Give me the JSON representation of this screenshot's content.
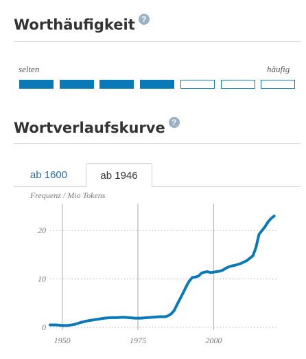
{
  "word_frequency": {
    "title": "Worthäufigkeit",
    "help_icon": "question-circle-icon",
    "label_low": "selten",
    "label_high": "häufig",
    "level": 4,
    "max_level": 7
  },
  "word_curve": {
    "title": "Wortverlaufskurve",
    "help_icon": "question-circle-icon",
    "tabs": [
      {
        "label": "ab 1600",
        "active": false
      },
      {
        "label": "ab 1946",
        "active": true
      }
    ]
  },
  "colors": {
    "accent": "#0a79b8",
    "link": "#2a6ea5"
  },
  "chart_data": {
    "type": "line",
    "ylabel": "Frequenz / Mio Tokens",
    "xlabel": "",
    "xlim": [
      1946,
      2021
    ],
    "ylim": [
      0,
      25
    ],
    "x_ticks": [
      1950,
      1975,
      2000
    ],
    "y_ticks": [
      0,
      10,
      20
    ],
    "grid": {
      "x": "solid",
      "y": "dotted"
    },
    "series": [
      {
        "x": [
          1946,
          1948,
          1950,
          1952,
          1954,
          1956,
          1958,
          1960,
          1962,
          1964,
          1966,
          1968,
          1970,
          1972,
          1974,
          1976,
          1978,
          1980,
          1982,
          1984,
          1985,
          1986,
          1987,
          1988,
          1989,
          1990,
          1991,
          1992,
          1993,
          1994,
          1995,
          1996,
          1997,
          1998,
          1999,
          2000,
          2001,
          2002,
          2003,
          2004,
          2005,
          2006,
          2007,
          2008,
          2009,
          2010,
          2011,
          2012,
          2013,
          2014,
          2015,
          2016,
          2017,
          2018,
          2019,
          2020
        ],
        "y": [
          0.5,
          0.5,
          0.4,
          0.4,
          0.6,
          1.0,
          1.3,
          1.5,
          1.7,
          1.9,
          2.0,
          2.0,
          2.1,
          2.0,
          1.9,
          1.9,
          2.0,
          2.1,
          2.2,
          2.2,
          2.4,
          2.8,
          3.5,
          4.8,
          6.0,
          7.2,
          8.5,
          9.6,
          10.3,
          10.4,
          10.6,
          11.2,
          11.4,
          11.5,
          11.3,
          11.4,
          11.5,
          11.6,
          11.8,
          12.2,
          12.5,
          12.7,
          12.8,
          13.0,
          13.2,
          13.5,
          13.8,
          14.3,
          14.8,
          16.5,
          19.2,
          20.0,
          20.8,
          21.8,
          22.5,
          23.0
        ]
      }
    ]
  }
}
